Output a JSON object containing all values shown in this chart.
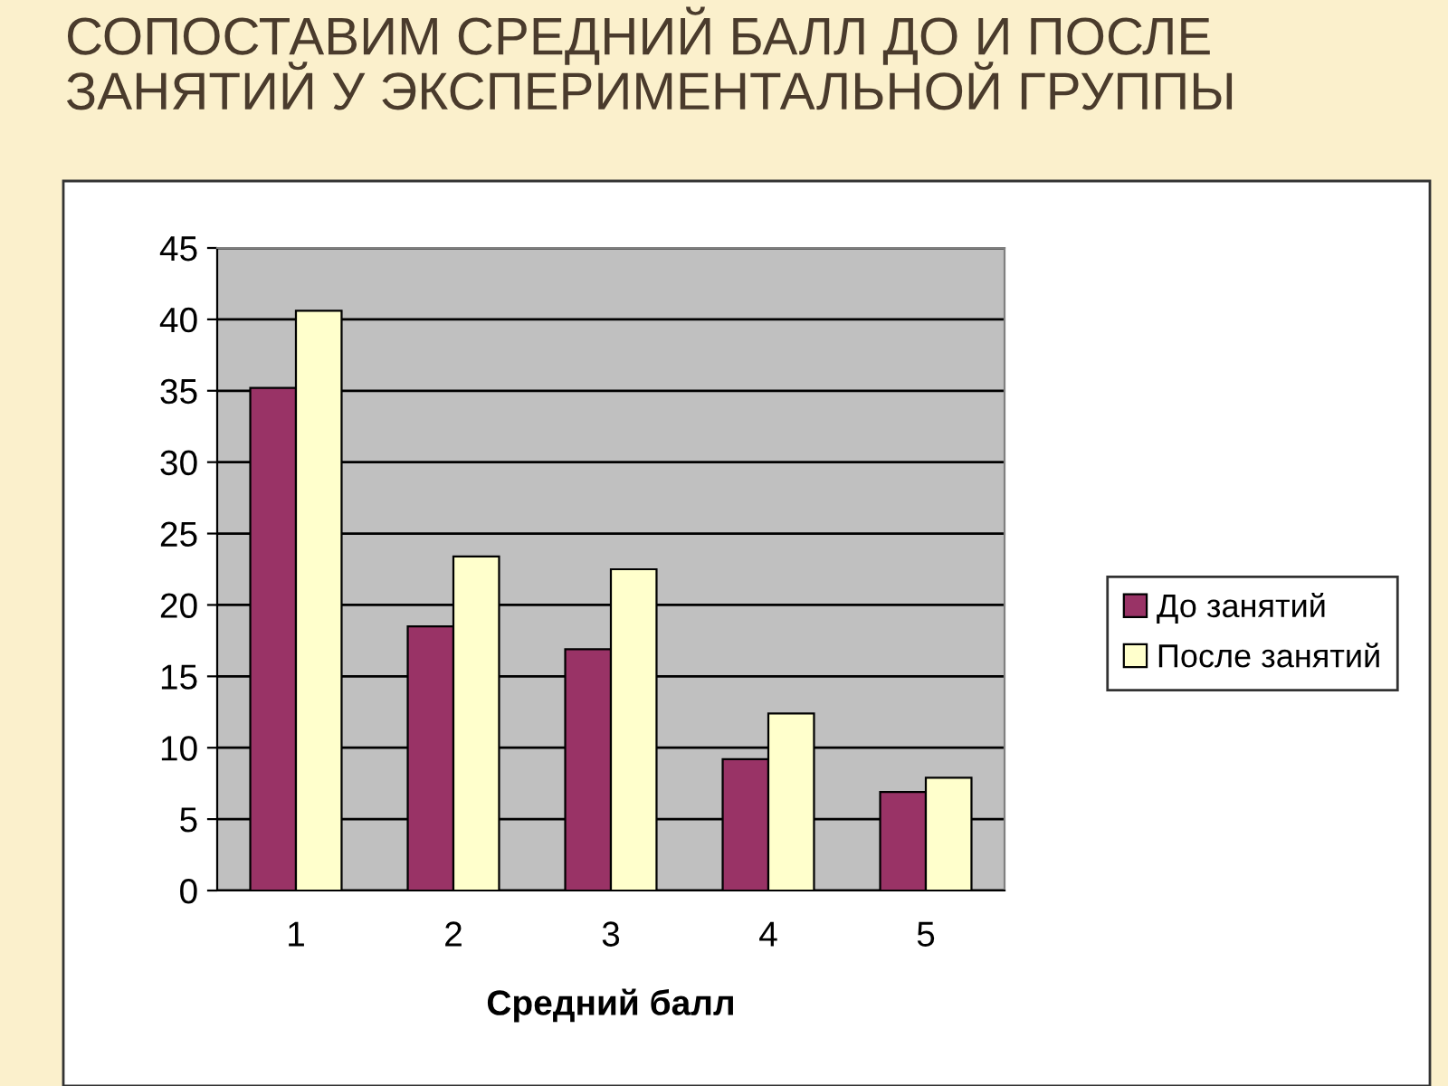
{
  "chart_data": {
    "type": "bar",
    "title": "СОПОСТАВИМ СРЕДНИЙ БАЛЛ ДО И ПОСЛЕ ЗАНЯТИЙ У ЭКСПЕРИМЕНТАЛЬНОЙ ГРУППЫ",
    "xlabel": "Средний балл",
    "categories": [
      "1",
      "2",
      "3",
      "4",
      "5"
    ],
    "series": [
      {
        "name": "До занятий",
        "color": "#993366",
        "values": [
          35.2,
          18.5,
          16.9,
          9.2,
          6.9
        ]
      },
      {
        "name": "После занятий",
        "color": "#ffffcc",
        "values": [
          40.6,
          23.4,
          22.5,
          12.4,
          7.9
        ]
      }
    ],
    "ylim": [
      0,
      45
    ],
    "yticks": [
      0,
      5,
      10,
      15,
      20,
      25,
      30,
      35,
      40,
      45
    ],
    "grid": "y",
    "legend": "right"
  }
}
